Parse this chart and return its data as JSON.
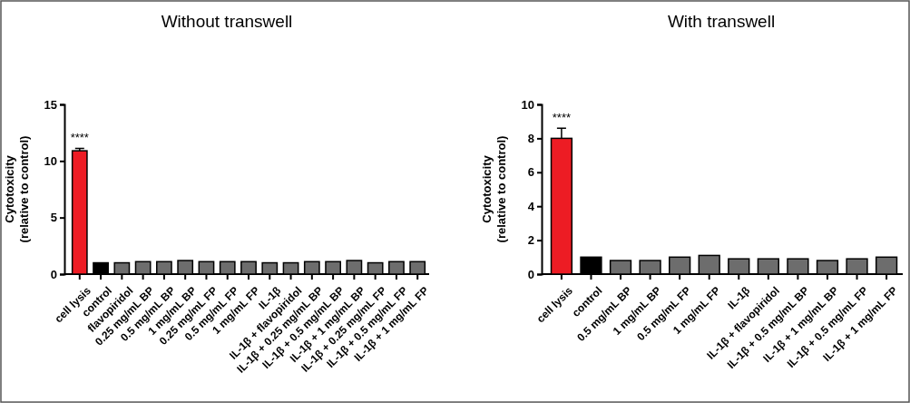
{
  "chart_data": [
    {
      "type": "bar",
      "title": "Without transwell",
      "ylabel": "Cytotoxicity\n(relative to control)",
      "categories": [
        "cell lysis",
        "control",
        "flavopiridol",
        "0.25 mg/mL BP",
        "0.5 mg/mL BP",
        "1 mg/mL BP",
        "0.25 mg/mL FP",
        "0.5 mg/mL FP",
        "1 mg/mL FP",
        "IL-1β",
        "IL-1β + flavopiridol",
        "IL-1β + 0.25 mg/mL BP",
        "IL-1β + 0.5 mg/mL BP",
        "IL-1β + 1 mg/mL BP",
        "IL-1β + 0.25 mg/mL FP",
        "IL-1β + 0.5 mg/mL FP",
        "IL-1β + 1 mg/mL FP"
      ],
      "values": [
        10.9,
        1.0,
        1.0,
        1.1,
        1.1,
        1.2,
        1.1,
        1.1,
        1.1,
        1.0,
        1.0,
        1.1,
        1.1,
        1.2,
        1.0,
        1.1,
        1.1
      ],
      "colors": [
        "#ed1c24",
        "#000000",
        "#6d6d6d",
        "#6d6d6d",
        "#6d6d6d",
        "#6d6d6d",
        "#6d6d6d",
        "#6d6d6d",
        "#6d6d6d",
        "#6d6d6d",
        "#6d6d6d",
        "#6d6d6d",
        "#6d6d6d",
        "#6d6d6d",
        "#6d6d6d",
        "#6d6d6d",
        "#6d6d6d"
      ],
      "errors": [
        0.2,
        null,
        null,
        null,
        null,
        null,
        null,
        null,
        null,
        null,
        null,
        null,
        null,
        null,
        null,
        null,
        null
      ],
      "ylim": [
        0,
        15
      ],
      "yticks": [
        0,
        5,
        10,
        15
      ],
      "annotations": [
        "****"
      ]
    },
    {
      "type": "bar",
      "title": "With transwell",
      "ylabel": "Cytotoxicity\n(relative to control)",
      "categories": [
        "cell lysis",
        "control",
        "0.5 mg/mL BP",
        "1 mg/mL BP",
        "0.5 mg/mL FP",
        "1 mg/mL FP",
        "IL-1β",
        "IL-1β + flavopiridol",
        "IL-1β + 0.5 mg/mL BP",
        "IL-1β + 1 mg/mL BP",
        "IL-1β + 0.5 mg/mL FP",
        "IL-1β + 1 mg/mL FP"
      ],
      "values": [
        8.0,
        1.0,
        0.8,
        0.8,
        1.0,
        1.1,
        0.9,
        0.9,
        0.9,
        0.8,
        0.9,
        1.0
      ],
      "colors": [
        "#ed1c24",
        "#000000",
        "#6d6d6d",
        "#6d6d6d",
        "#6d6d6d",
        "#6d6d6d",
        "#6d6d6d",
        "#6d6d6d",
        "#6d6d6d",
        "#6d6d6d",
        "#6d6d6d",
        "#6d6d6d"
      ],
      "errors": [
        0.6,
        null,
        null,
        null,
        null,
        null,
        null,
        null,
        null,
        null,
        null,
        null
      ],
      "ylim": [
        0,
        10
      ],
      "yticks": [
        0,
        2,
        4,
        6,
        8,
        10
      ],
      "annotations": [
        "****"
      ]
    }
  ]
}
